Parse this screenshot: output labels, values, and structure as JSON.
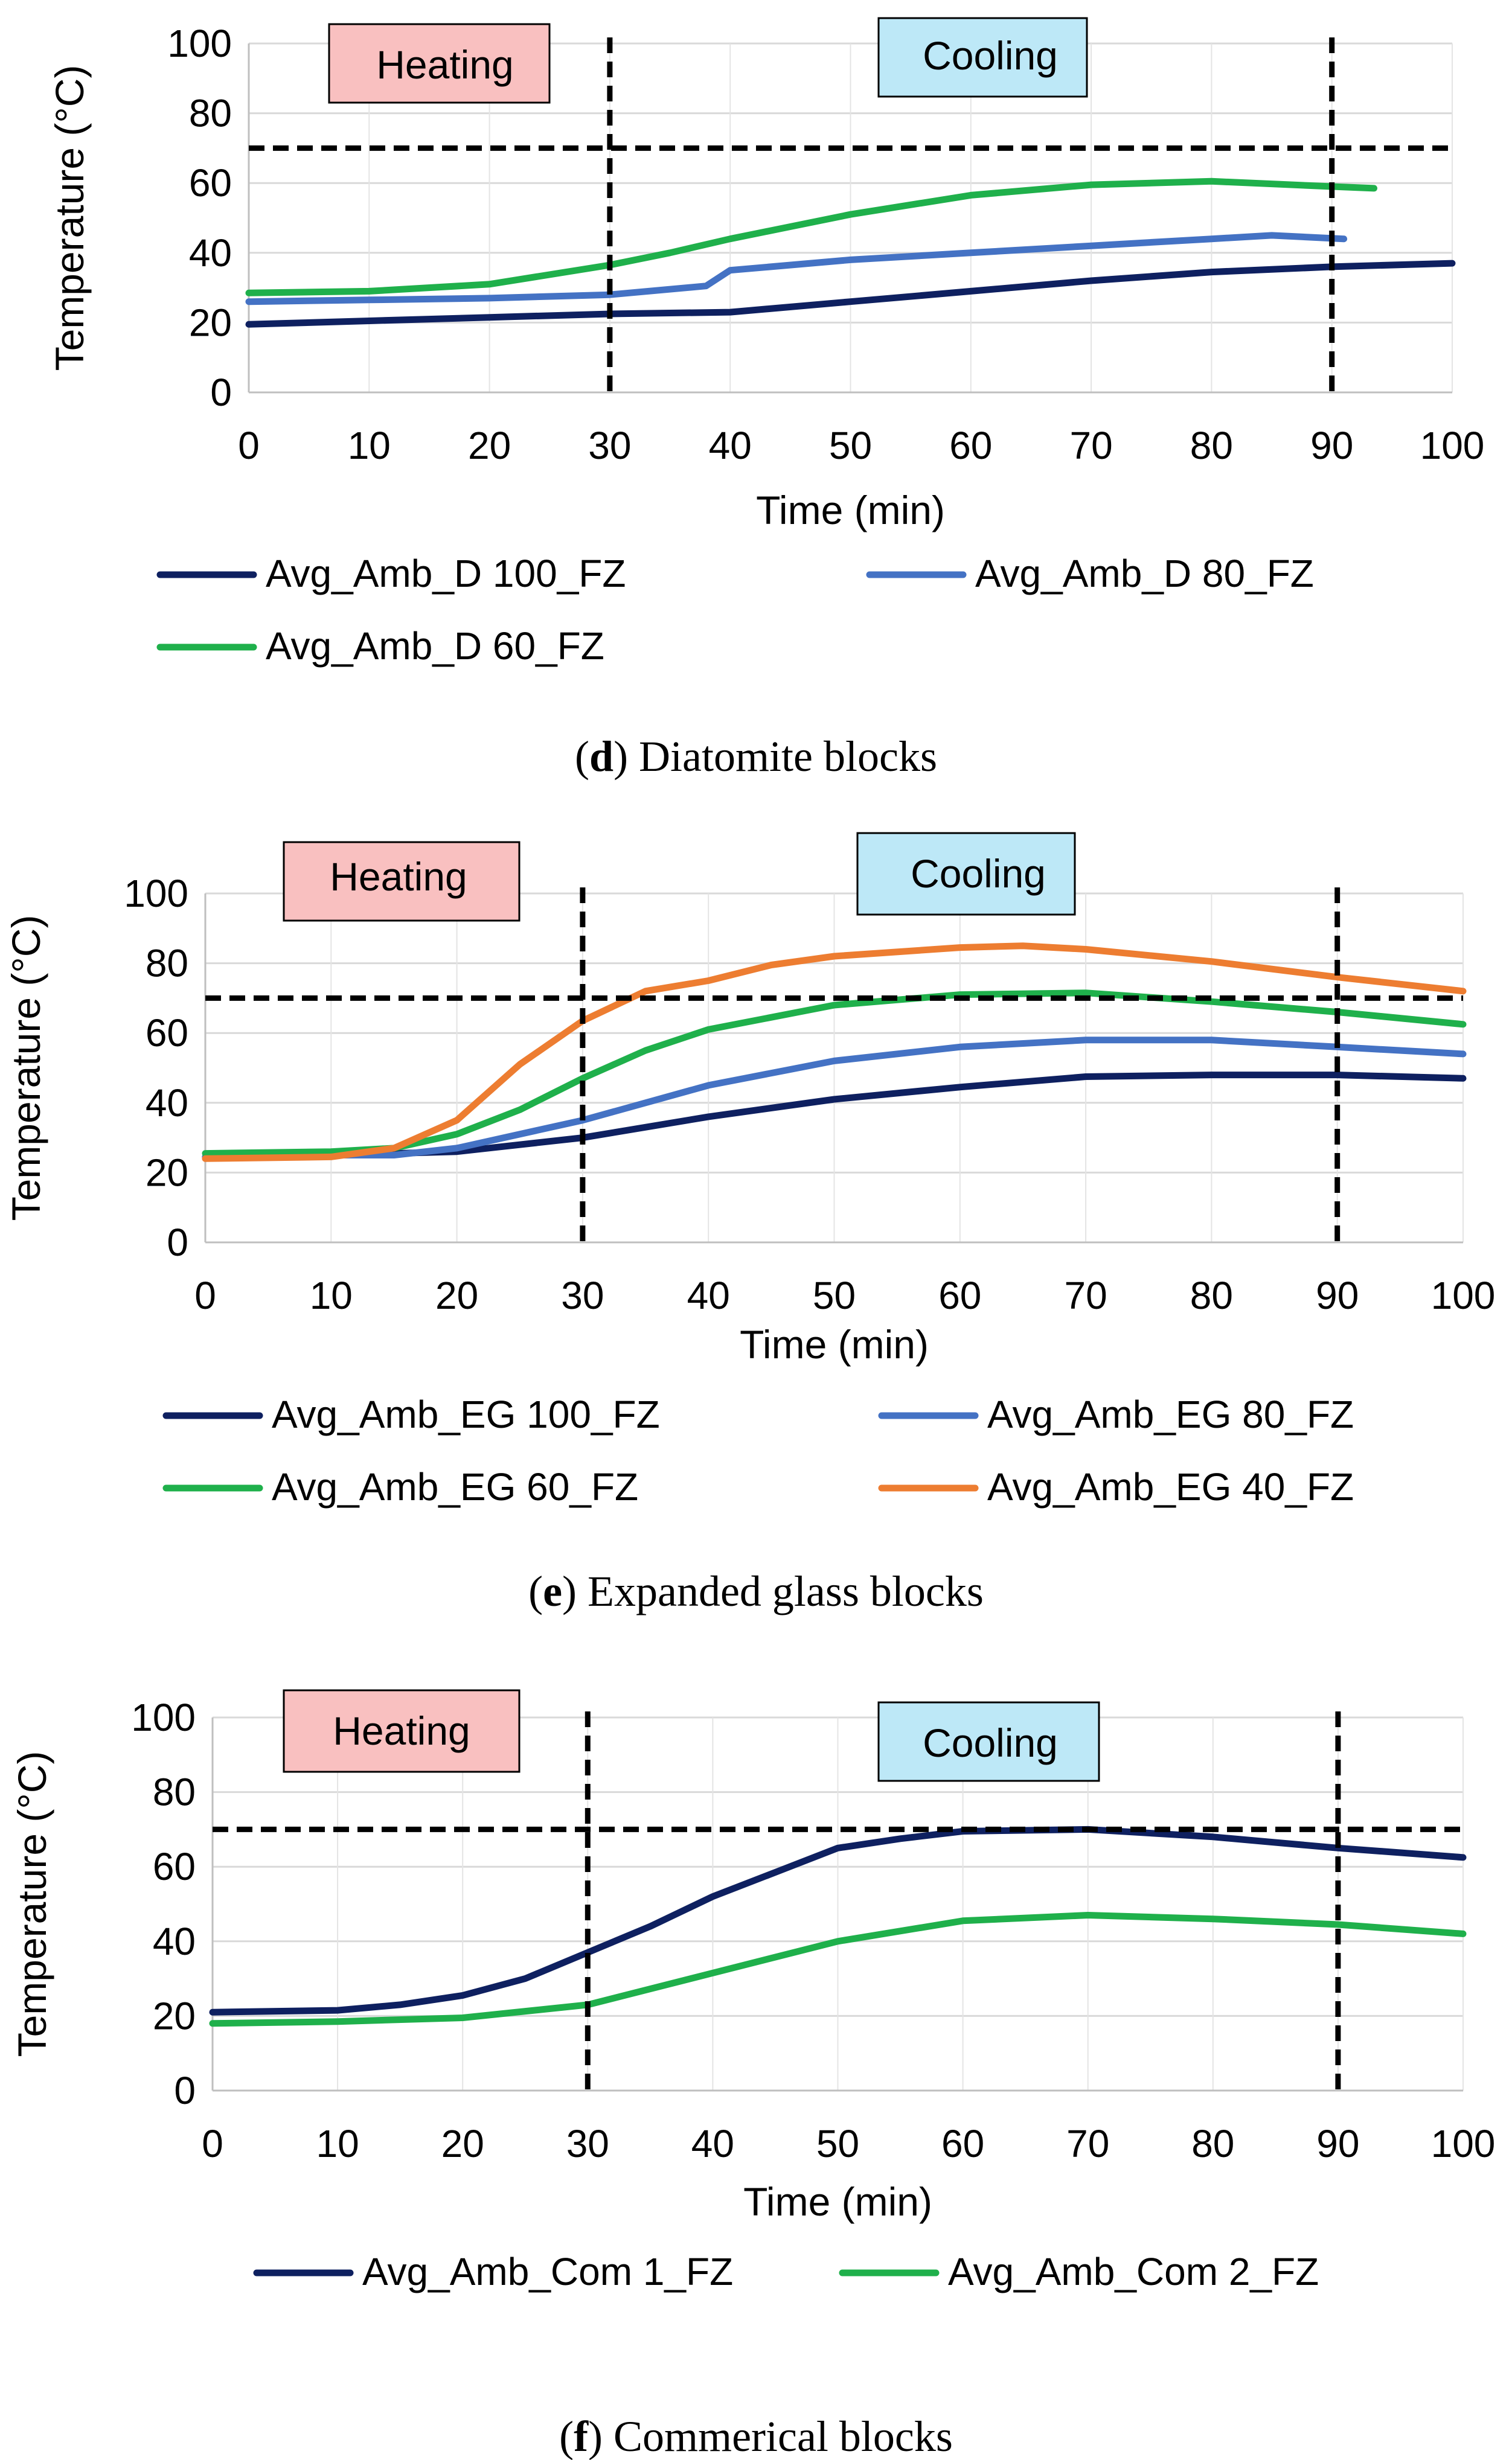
{
  "figure": {
    "captions": [
      {
        "letter": "d",
        "text": " Diatomite blocks"
      },
      {
        "letter": "e",
        "text": " Expanded glass blocks"
      },
      {
        "letter": "f",
        "text": " Commerical blocks"
      }
    ]
  },
  "chart_data": [
    {
      "type": "line",
      "panel": "d",
      "title": "",
      "xlabel": "Time (min)",
      "ylabel": "Temperature (°C)",
      "xlim": [
        0,
        100
      ],
      "ylim": [
        0,
        100
      ],
      "xticks": [
        0,
        10,
        20,
        30,
        40,
        50,
        60,
        70,
        80,
        90,
        100
      ],
      "yticks": [
        0,
        20,
        40,
        60,
        80,
        100
      ],
      "grid": true,
      "threshold": 70,
      "phase_lines": [
        30,
        90
      ],
      "annotations": [
        {
          "text": "Heating",
          "color": "#f9c0c0"
        },
        {
          "text": "Cooling",
          "color": "#bde8f7"
        }
      ],
      "legend": "bottom",
      "series": [
        {
          "name": "Avg_Amb_D 100_FZ",
          "color": "#0e2060",
          "x": [
            0,
            10,
            20,
            30,
            40,
            50,
            60,
            70,
            80,
            90,
            100
          ],
          "y": [
            19.5,
            20.5,
            21.5,
            22.5,
            23,
            26,
            29,
            32,
            34.5,
            36,
            37
          ]
        },
        {
          "name": "Avg_Amb_D 80_FZ",
          "color": "#4472c4",
          "x": [
            0,
            10,
            20,
            30,
            38,
            40,
            50,
            60,
            70,
            80,
            85,
            91
          ],
          "y": [
            26,
            26.5,
            27,
            28,
            30.5,
            35,
            38,
            40,
            42,
            44,
            45,
            44
          ]
        },
        {
          "name": "Avg_Amb_D 60_FZ",
          "color": "#1fb04b",
          "x": [
            0,
            10,
            20,
            30,
            35,
            40,
            50,
            60,
            70,
            80,
            90,
            93.5
          ],
          "y": [
            28.5,
            29,
            31,
            36.5,
            40,
            44,
            51,
            56.5,
            59.5,
            60.5,
            59,
            58.5
          ]
        }
      ]
    },
    {
      "type": "line",
      "panel": "e",
      "title": "",
      "xlabel": "Time (min)",
      "ylabel": "Temperature (°C)",
      "xlim": [
        0,
        100
      ],
      "ylim": [
        0,
        100
      ],
      "xticks": [
        0,
        10,
        20,
        30,
        40,
        50,
        60,
        70,
        80,
        90,
        100
      ],
      "yticks": [
        0,
        20,
        40,
        60,
        80,
        100
      ],
      "grid": true,
      "threshold": 70,
      "phase_lines": [
        30,
        90
      ],
      "annotations": [
        {
          "text": "Heating",
          "color": "#f9c0c0"
        },
        {
          "text": "Cooling",
          "color": "#bde8f7"
        }
      ],
      "legend": "bottom",
      "series": [
        {
          "name": "Avg_Amb_EG 100_FZ",
          "color": "#0e2060",
          "x": [
            0,
            10,
            20,
            30,
            40,
            50,
            60,
            70,
            80,
            90,
            100
          ],
          "y": [
            24.5,
            25,
            26,
            30,
            36,
            41,
            44.5,
            47.5,
            48,
            48,
            47
          ]
        },
        {
          "name": "Avg_Amb_EG 80_FZ",
          "color": "#4472c4",
          "x": [
            0,
            10,
            15,
            20,
            30,
            40,
            50,
            60,
            70,
            80,
            90,
            100
          ],
          "y": [
            24.5,
            25,
            25,
            27,
            35,
            45,
            52,
            56,
            58,
            58,
            56,
            54
          ]
        },
        {
          "name": "Avg_Amb_EG 60_FZ",
          "color": "#1fb04b",
          "x": [
            0,
            10,
            15,
            20,
            25,
            30,
            35,
            40,
            50,
            60,
            70,
            80,
            90,
            100
          ],
          "y": [
            25.5,
            26,
            27,
            31,
            38,
            47,
            55,
            61,
            68,
            71,
            71.5,
            69,
            66,
            62.5
          ]
        },
        {
          "name": "Avg_Amb_EG 40_FZ",
          "color": "#ed7d31",
          "x": [
            0,
            10,
            15,
            20,
            25,
            30,
            35,
            40,
            45,
            50,
            60,
            65,
            70,
            80,
            90,
            100
          ],
          "y": [
            24,
            24.5,
            27,
            35,
            51,
            63.5,
            72,
            75,
            79.5,
            82,
            84.5,
            85,
            84,
            80.5,
            76,
            72
          ]
        }
      ]
    },
    {
      "type": "line",
      "panel": "f",
      "title": "",
      "xlabel": "Time (min)",
      "ylabel": "Temperature (°C)",
      "xlim": [
        0,
        100
      ],
      "ylim": [
        0,
        100
      ],
      "xticks": [
        0,
        10,
        20,
        30,
        40,
        50,
        60,
        70,
        80,
        90,
        100
      ],
      "yticks": [
        0,
        20,
        40,
        60,
        80,
        100
      ],
      "grid": true,
      "threshold": 70,
      "phase_lines": [
        30,
        90
      ],
      "annotations": [
        {
          "text": "Heating",
          "color": "#f9c0c0"
        },
        {
          "text": "Cooling",
          "color": "#bde8f7"
        }
      ],
      "legend": "bottom",
      "series": [
        {
          "name": "Avg_Amb_Com 1_FZ",
          "color": "#0e2060",
          "x": [
            0,
            10,
            15,
            20,
            25,
            30,
            35,
            40,
            45,
            50,
            55,
            60,
            70,
            80,
            90,
            100
          ],
          "y": [
            21,
            21.5,
            23,
            25.5,
            30,
            37,
            44,
            52,
            58.5,
            65,
            67.5,
            69.5,
            70,
            68,
            65,
            62.5
          ]
        },
        {
          "name": "Avg_Amb_Com 2_FZ",
          "color": "#1fb04b",
          "x": [
            0,
            10,
            20,
            30,
            40,
            50,
            60,
            70,
            80,
            90,
            100
          ],
          "y": [
            18,
            18.5,
            19.5,
            23,
            31.5,
            40,
            45.5,
            47,
            46,
            44.5,
            42
          ]
        }
      ]
    }
  ]
}
